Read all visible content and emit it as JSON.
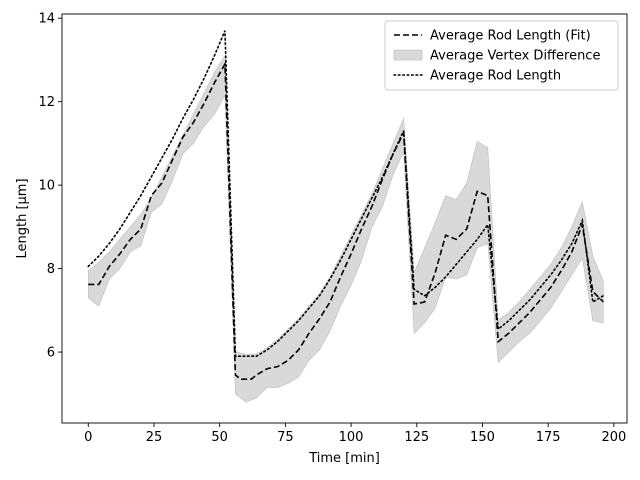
{
  "chart_data": {
    "type": "line",
    "xlabel": "Time [min]",
    "ylabel": "Length [μm]",
    "xlim": [
      -10,
      205
    ],
    "ylim": [
      4.3,
      14.1
    ],
    "xticks": [
      0,
      25,
      50,
      75,
      100,
      125,
      150,
      175,
      200
    ],
    "yticks": [
      6,
      8,
      10,
      12,
      14
    ],
    "legend_position": "top-right",
    "grid": false,
    "legend": [
      {
        "label": "Average Rod Length (Fit)",
        "style": "dashed"
      },
      {
        "label": "Average Vertex Difference",
        "style": "band"
      },
      {
        "label": "Average Rod Length",
        "style": "dotted"
      }
    ],
    "colors": {
      "line": "#000000",
      "band_fill": "#d9d9d9",
      "band_edge": "#bdbdbd"
    },
    "band": {
      "x": [
        0,
        4,
        8,
        12,
        16,
        20,
        24,
        28,
        32,
        36,
        40,
        44,
        48,
        52,
        56,
        60,
        64,
        68,
        72,
        76,
        80,
        84,
        88,
        92,
        96,
        100,
        104,
        108,
        112,
        116,
        120,
        124,
        128,
        132,
        136,
        140,
        144,
        148,
        152,
        156,
        160,
        164,
        168,
        172,
        176,
        180,
        184,
        188,
        192,
        196
      ],
      "upper": [
        7.95,
        8.15,
        8.4,
        8.7,
        9.0,
        9.3,
        9.7,
        10.2,
        10.7,
        11.2,
        11.7,
        12.2,
        12.7,
        13.1,
        6.0,
        5.95,
        5.95,
        6.1,
        6.3,
        6.55,
        6.8,
        7.1,
        7.4,
        7.8,
        8.3,
        8.8,
        9.3,
        9.8,
        10.4,
        11.0,
        11.6,
        7.9,
        8.5,
        9.1,
        9.75,
        9.65,
        10.05,
        11.05,
        10.9,
        6.75,
        6.95,
        7.2,
        7.5,
        7.8,
        8.1,
        8.5,
        9.0,
        9.6,
        8.3,
        7.7
      ],
      "lower": [
        7.3,
        7.1,
        7.75,
        8.0,
        8.4,
        8.55,
        9.35,
        9.55,
        10.1,
        10.75,
        11.0,
        11.4,
        11.7,
        12.15,
        5.0,
        4.8,
        4.9,
        5.15,
        5.15,
        5.25,
        5.4,
        5.8,
        6.05,
        6.5,
        7.1,
        7.6,
        8.2,
        9.0,
        9.5,
        10.25,
        10.8,
        6.45,
        6.7,
        7.05,
        7.8,
        7.75,
        7.85,
        8.5,
        8.6,
        5.75,
        6.0,
        6.25,
        6.45,
        6.75,
        7.05,
        7.45,
        7.85,
        8.25,
        6.75,
        6.7
      ]
    },
    "series": [
      {
        "name": "Average Rod Length (Fit)",
        "style": "dashed",
        "x": [
          0,
          4,
          8,
          12,
          16,
          20,
          24,
          28,
          32,
          36,
          40,
          44,
          48,
          52,
          56,
          58,
          62,
          64,
          68,
          72,
          76,
          80,
          84,
          88,
          92,
          96,
          100,
          104,
          108,
          112,
          116,
          120,
          124,
          128,
          132,
          136,
          140,
          144,
          148,
          152,
          156,
          160,
          164,
          168,
          172,
          176,
          180,
          184,
          188,
          192,
          196
        ],
        "y": [
          7.62,
          7.62,
          8.05,
          8.35,
          8.7,
          8.95,
          9.75,
          10.05,
          10.6,
          11.15,
          11.5,
          11.95,
          12.45,
          12.9,
          5.45,
          5.35,
          5.35,
          5.45,
          5.6,
          5.65,
          5.8,
          6.05,
          6.45,
          6.8,
          7.2,
          7.8,
          8.35,
          8.95,
          9.5,
          10.15,
          10.75,
          11.25,
          7.15,
          7.2,
          7.9,
          8.8,
          8.7,
          8.95,
          9.85,
          9.75,
          6.25,
          6.45,
          6.7,
          6.95,
          7.25,
          7.55,
          7.95,
          8.4,
          9.05,
          7.45,
          7.2
        ]
      },
      {
        "name": "Average Rod Length",
        "style": "dotted",
        "x": [
          0,
          4,
          8,
          12,
          16,
          20,
          24,
          28,
          32,
          36,
          40,
          44,
          48,
          52,
          56,
          60,
          64,
          68,
          72,
          76,
          80,
          84,
          88,
          92,
          96,
          100,
          104,
          108,
          112,
          116,
          120,
          124,
          128,
          132,
          136,
          140,
          144,
          148,
          152,
          156,
          160,
          164,
          168,
          172,
          176,
          180,
          184,
          188,
          192,
          196
        ],
        "y": [
          8.05,
          8.3,
          8.6,
          8.95,
          9.35,
          9.75,
          10.2,
          10.65,
          11.1,
          11.6,
          12.05,
          12.55,
          13.1,
          13.7,
          5.9,
          5.9,
          5.9,
          6.05,
          6.25,
          6.5,
          6.75,
          7.05,
          7.35,
          7.75,
          8.2,
          8.7,
          9.2,
          9.7,
          10.2,
          10.75,
          11.3,
          7.5,
          7.35,
          7.55,
          7.8,
          8.1,
          8.4,
          8.7,
          9.05,
          6.55,
          6.75,
          7.0,
          7.25,
          7.55,
          7.85,
          8.2,
          8.6,
          9.15,
          7.2,
          7.35
        ]
      }
    ]
  }
}
